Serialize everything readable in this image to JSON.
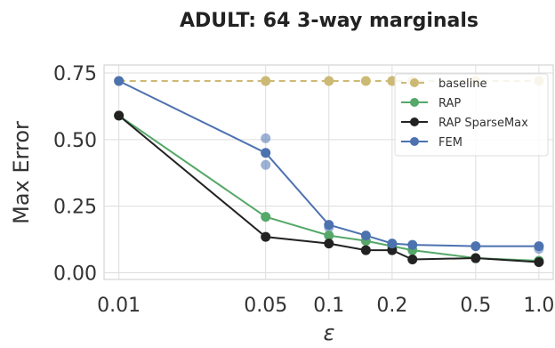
{
  "chart_data": {
    "type": "line",
    "title": "ADULT: 64 3-way marginals",
    "xlabel": "ε",
    "ylabel": "Max Error",
    "x_scale": "log",
    "xlim": [
      0.01,
      1.0
    ],
    "ylim": [
      0.0,
      0.78
    ],
    "x_ticks": [
      "0.01",
      "0.05",
      "0.1",
      "0.2",
      "0.5",
      "1.0"
    ],
    "y_ticks": [
      "0.00",
      "0.25",
      "0.50",
      "0.75"
    ],
    "grid": true,
    "legend_position": "top-right",
    "series": [
      {
        "name": "baseline",
        "color": "#ccb974",
        "style": "dashed",
        "x": [
          0.01,
          0.05,
          0.1,
          0.15,
          0.2,
          0.25,
          0.5,
          1.0
        ],
        "y": [
          0.72,
          0.72,
          0.72,
          0.72,
          0.72,
          0.72,
          0.72,
          0.72
        ]
      },
      {
        "name": "RAP",
        "color": "#55a868",
        "style": "solid",
        "x": [
          0.01,
          0.05,
          0.1,
          0.15,
          0.2,
          0.25,
          0.5,
          1.0
        ],
        "y": [
          0.59,
          0.21,
          0.14,
          0.12,
          0.1,
          0.085,
          0.055,
          0.045
        ]
      },
      {
        "name": "RAP SparseMax",
        "color": "#222222",
        "style": "solid",
        "x": [
          0.01,
          0.05,
          0.1,
          0.15,
          0.2,
          0.25,
          0.5,
          1.0
        ],
        "y": [
          0.59,
          0.135,
          0.11,
          0.085,
          0.085,
          0.05,
          0.055,
          0.04
        ]
      },
      {
        "name": "FEM",
        "color": "#4c72b0",
        "style": "solid",
        "x": [
          0.01,
          0.05,
          0.1,
          0.15,
          0.2,
          0.25,
          0.5,
          1.0
        ],
        "y": [
          0.72,
          0.45,
          0.18,
          0.14,
          0.11,
          0.105,
          0.1,
          0.1
        ]
      }
    ],
    "extra_points": [
      {
        "series": "FEM",
        "x": 0.05,
        "y": 0.505
      },
      {
        "series": "FEM",
        "x": 0.05,
        "y": 0.405
      },
      {
        "series": "FEM",
        "x": 0.1,
        "y": 0.17
      },
      {
        "series": "FEM",
        "x": 0.2,
        "y": 0.105
      },
      {
        "series": "FEM",
        "x": 1.0,
        "y": 0.09
      }
    ]
  }
}
